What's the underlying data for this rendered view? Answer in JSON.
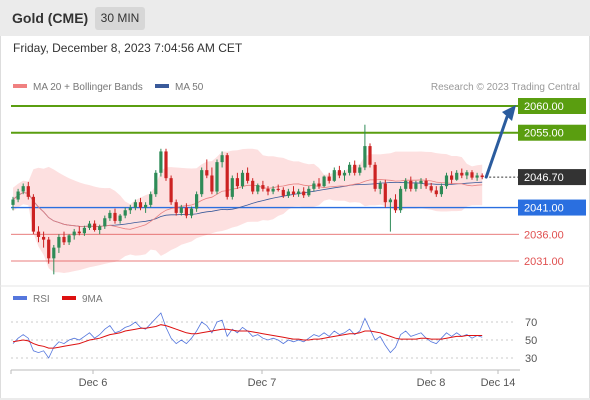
{
  "header": {
    "title": "Gold (CME)",
    "interval": "30 MIN"
  },
  "datetime": "Friday, December 8, 2023 7:04:56 AM CET",
  "legend": {
    "ma20": "MA 20 + Bollinger Bands",
    "ma50": "MA 50",
    "rsi": "RSI",
    "ma9": "9MA"
  },
  "copyright": "Research © 2023 Trading Central",
  "colors": {
    "resistance": "#5a9e10",
    "support": "#2a6fe0",
    "secondary": "#e05050",
    "last_price": "#333333",
    "bollinger_fill": "#fde0e0",
    "ma20": "#e88080",
    "ma50": "#3a5a9a",
    "bull": "#2e8b57",
    "bear": "#cc2222",
    "forecast_arrow": "#2b5c9e",
    "rsi": "#5577dd",
    "rsi_ma": "#dd1111"
  },
  "levels": [
    {
      "value": "2060.00",
      "kind": "resistance"
    },
    {
      "value": "2055.00",
      "kind": "resistance"
    },
    {
      "value": "2046.70",
      "kind": "last"
    },
    {
      "value": "2041.00",
      "kind": "support"
    },
    {
      "value": "2036.00",
      "kind": "secondary"
    },
    {
      "value": "2031.00",
      "kind": "secondary"
    }
  ],
  "rsi_ticks": [
    "70",
    "50",
    "30"
  ],
  "x_labels": [
    "Dec 6",
    "Dec 7",
    "Dec 8",
    "Dec 14"
  ],
  "chart_data": {
    "type": "candlestick",
    "price_ylim": [
      2025.0,
      2063.0
    ],
    "rsi_ylim": [
      20,
      80
    ],
    "levels": [
      2060.0,
      2055.0,
      2046.7,
      2041.0,
      2036.0,
      2031.0
    ],
    "forecast": {
      "from": 2046.7,
      "to": 2060.0
    },
    "candles": [
      [
        2041.5,
        2043.0,
        2040.5,
        2042.5
      ],
      [
        2042.5,
        2044.5,
        2042.0,
        2044.0
      ],
      [
        2044.0,
        2045.5,
        2043.5,
        2045.0
      ],
      [
        2045.0,
        2045.8,
        2042.5,
        2043.0
      ],
      [
        2043.0,
        2043.5,
        2036.0,
        2036.5
      ],
      [
        2036.5,
        2037.5,
        2034.5,
        2035.5
      ],
      [
        2035.5,
        2036.5,
        2033.5,
        2035.0
      ],
      [
        2035.0,
        2035.5,
        2030.5,
        2031.5
      ],
      [
        2031.5,
        2034.0,
        2028.5,
        2033.5
      ],
      [
        2033.5,
        2036.0,
        2032.5,
        2035.5
      ],
      [
        2035.5,
        2036.5,
        2034.0,
        2034.5
      ],
      [
        2034.5,
        2036.0,
        2034.0,
        2035.8
      ],
      [
        2035.8,
        2037.0,
        2035.0,
        2036.5
      ],
      [
        2036.5,
        2037.5,
        2035.8,
        2036.2
      ],
      [
        2036.2,
        2037.6,
        2035.7,
        2037.2
      ],
      [
        2037.2,
        2038.5,
        2036.8,
        2038.0
      ],
      [
        2038.0,
        2038.6,
        2036.5,
        2036.8
      ],
      [
        2036.8,
        2037.8,
        2036.0,
        2037.5
      ],
      [
        2037.5,
        2039.5,
        2037.0,
        2039.0
      ],
      [
        2039.0,
        2040.5,
        2038.5,
        2040.0
      ],
      [
        2040.0,
        2040.8,
        2038.0,
        2038.5
      ],
      [
        2038.5,
        2039.8,
        2038.0,
        2039.5
      ],
      [
        2039.5,
        2041.0,
        2039.0,
        2040.5
      ],
      [
        2040.5,
        2041.5,
        2039.8,
        2041.0
      ],
      [
        2041.0,
        2042.5,
        2040.5,
        2042.0
      ],
      [
        2042.0,
        2042.8,
        2040.5,
        2041.0
      ],
      [
        2041.0,
        2042.0,
        2040.0,
        2041.5
      ],
      [
        2041.5,
        2044.0,
        2041.0,
        2043.5
      ],
      [
        2043.5,
        2048.0,
        2043.0,
        2047.5
      ],
      [
        2047.5,
        2052.0,
        2046.8,
        2051.5
      ],
      [
        2051.5,
        2052.0,
        2046.0,
        2046.5
      ],
      [
        2046.5,
        2047.0,
        2041.5,
        2042.0
      ],
      [
        2042.0,
        2042.5,
        2039.5,
        2040.0
      ],
      [
        2040.0,
        2041.5,
        2039.5,
        2041.0
      ],
      [
        2041.0,
        2041.8,
        2039.0,
        2039.5
      ],
      [
        2039.5,
        2041.2,
        2039.0,
        2040.8
      ],
      [
        2040.8,
        2044.0,
        2040.2,
        2043.5
      ],
      [
        2043.5,
        2048.5,
        2043.0,
        2048.0
      ],
      [
        2048.0,
        2050.0,
        2046.5,
        2047.0
      ],
      [
        2047.0,
        2048.5,
        2043.5,
        2044.0
      ],
      [
        2044.0,
        2050.0,
        2043.5,
        2049.5
      ],
      [
        2049.5,
        2051.5,
        2048.5,
        2050.8
      ],
      [
        2050.8,
        2051.2,
        2042.5,
        2043.0
      ],
      [
        2043.0,
        2047.0,
        2042.5,
        2046.5
      ],
      [
        2046.5,
        2047.5,
        2044.5,
        2045.0
      ],
      [
        2045.0,
        2048.0,
        2044.5,
        2047.5
      ],
      [
        2047.5,
        2048.5,
        2045.5,
        2046.0
      ],
      [
        2046.0,
        2046.5,
        2043.5,
        2044.0
      ],
      [
        2044.0,
        2045.5,
        2043.5,
        2045.2
      ],
      [
        2045.2,
        2046.0,
        2044.0,
        2044.5
      ],
      [
        2044.5,
        2045.0,
        2043.3,
        2044.0
      ],
      [
        2044.0,
        2045.0,
        2043.5,
        2044.5
      ],
      [
        2044.5,
        2045.3,
        2044.0,
        2044.3
      ],
      [
        2044.3,
        2044.8,
        2042.8,
        2043.2
      ],
      [
        2043.2,
        2044.5,
        2042.8,
        2044.0
      ],
      [
        2044.0,
        2045.0,
        2043.0,
        2043.5
      ],
      [
        2043.5,
        2044.5,
        2043.0,
        2044.0
      ],
      [
        2044.0,
        2044.8,
        2042.8,
        2043.3
      ],
      [
        2043.3,
        2045.0,
        2043.0,
        2044.5
      ],
      [
        2044.5,
        2046.0,
        2044.0,
        2045.5
      ],
      [
        2045.5,
        2046.5,
        2044.5,
        2045.0
      ],
      [
        2045.0,
        2047.0,
        2044.8,
        2046.8
      ],
      [
        2046.8,
        2047.5,
        2045.5,
        2046.0
      ],
      [
        2046.0,
        2048.5,
        2045.8,
        2048.0
      ],
      [
        2048.0,
        2048.8,
        2046.5,
        2047.0
      ],
      [
        2047.0,
        2048.0,
        2046.0,
        2047.5
      ],
      [
        2047.5,
        2049.5,
        2047.0,
        2049.0
      ],
      [
        2049.0,
        2049.8,
        2047.0,
        2047.5
      ],
      [
        2047.5,
        2049.0,
        2047.0,
        2048.5
      ],
      [
        2048.5,
        2056.5,
        2048.0,
        2052.5
      ],
      [
        2052.5,
        2053.0,
        2048.5,
        2049.0
      ],
      [
        2049.0,
        2049.5,
        2044.0,
        2044.5
      ],
      [
        2044.5,
        2046.0,
        2043.5,
        2045.5
      ],
      [
        2045.5,
        2046.2,
        2041.0,
        2042.0
      ],
      [
        2042.0,
        2042.8,
        2036.5,
        2042.5
      ],
      [
        2042.5,
        2043.5,
        2040.0,
        2040.5
      ],
      [
        2040.5,
        2045.0,
        2040.0,
        2044.5
      ],
      [
        2044.5,
        2046.5,
        2044.0,
        2046.0
      ],
      [
        2046.0,
        2046.8,
        2044.0,
        2044.5
      ],
      [
        2044.5,
        2046.0,
        2044.0,
        2045.5
      ],
      [
        2045.5,
        2046.5,
        2044.5,
        2046.0
      ],
      [
        2046.0,
        2046.5,
        2044.5,
        2045.0
      ],
      [
        2045.0,
        2045.6,
        2043.8,
        2044.2
      ],
      [
        2044.2,
        2045.0,
        2043.0,
        2043.5
      ],
      [
        2043.5,
        2045.5,
        2043.0,
        2045.0
      ],
      [
        2045.0,
        2047.5,
        2044.5,
        2047.0
      ],
      [
        2047.0,
        2047.8,
        2045.5,
        2046.2
      ],
      [
        2046.2,
        2048.0,
        2046.0,
        2047.5
      ],
      [
        2047.5,
        2048.3,
        2046.5,
        2047.0
      ],
      [
        2047.0,
        2048.0,
        2046.3,
        2047.6
      ],
      [
        2047.6,
        2048.0,
        2046.2,
        2046.6
      ],
      [
        2046.6,
        2047.5,
        2046.0,
        2047.0
      ],
      [
        2047.0,
        2047.4,
        2046.3,
        2046.7
      ]
    ],
    "rsi": [
      46,
      52,
      56,
      52,
      38,
      36,
      38,
      30,
      42,
      48,
      46,
      50,
      52,
      50,
      54,
      58,
      52,
      56,
      62,
      66,
      58,
      60,
      64,
      66,
      70,
      64,
      62,
      68,
      74,
      80,
      64,
      52,
      46,
      50,
      46,
      52,
      60,
      70,
      66,
      58,
      70,
      72,
      54,
      62,
      58,
      64,
      60,
      54,
      56,
      52,
      50,
      52,
      50,
      46,
      50,
      48,
      50,
      48,
      52,
      56,
      54,
      58,
      54,
      60,
      56,
      58,
      62,
      56,
      60,
      74,
      62,
      50,
      54,
      44,
      36,
      42,
      56,
      60,
      54,
      56,
      58,
      52,
      48,
      46,
      52,
      58,
      54,
      58,
      54,
      56,
      52,
      55,
      53
    ],
    "rsi_ma": [
      48,
      49,
      50,
      49,
      46,
      44,
      43,
      41,
      41,
      42,
      43,
      44,
      45,
      46,
      48,
      50,
      51,
      52,
      54,
      56,
      57,
      58,
      60,
      61,
      62,
      63,
      63,
      64,
      65,
      67,
      66,
      64,
      62,
      60,
      58,
      57,
      57,
      58,
      59,
      60,
      61,
      62,
      62,
      61,
      60,
      60,
      60,
      59,
      58,
      57,
      56,
      55,
      54,
      53,
      52,
      51,
      51,
      50,
      50,
      51,
      51,
      52,
      53,
      54,
      55,
      56,
      57,
      57,
      58,
      60,
      60,
      59,
      58,
      56,
      54,
      52,
      51,
      51,
      51,
      51,
      52,
      52,
      51,
      51,
      51,
      52,
      53,
      54,
      54,
      55,
      55,
      55,
      55
    ]
  }
}
